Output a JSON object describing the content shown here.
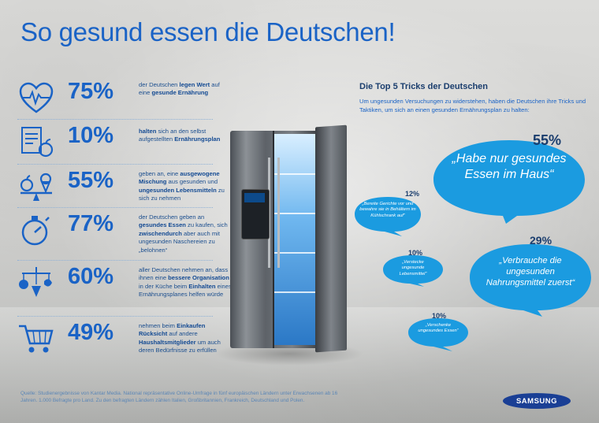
{
  "title": "So gesund essen die Deutschen!",
  "stats": [
    {
      "pct": "75%",
      "icon": "heart-pulse-icon",
      "t1": "der Deutschen ",
      "b1": "legen Wert",
      "t2": " auf eine ",
      "b2": "gesunde Ernährung",
      "t3": ""
    },
    {
      "pct": "10%",
      "icon": "checklist-apple-icon",
      "t1": "",
      "b1": "halten",
      "t2": " sich an den selbst aufgestellten ",
      "b2": "Ernährungsplan",
      "t3": ""
    },
    {
      "pct": "55%",
      "icon": "balance-apple-icecream-icon",
      "t1": "geben an, eine ",
      "b1": "ausgewogene Mischung",
      "t2": " aus gesunden und ",
      "b2": "ungesunden Lebensmitteln",
      "t3": " zu sich zu nehmen"
    },
    {
      "pct": "77%",
      "icon": "stopwatch-icon",
      "t1": "der Deutschen geben an ",
      "b1": "gesundes Essen",
      "t2": " zu kaufen, sich ",
      "b2": "zwischendurch",
      "t3": " aber auch mit ungesunden Naschereien zu „belohnen“"
    },
    {
      "pct": "60%",
      "icon": "food-mobile-icon",
      "t1": "aller Deutschen nehmen an, dass ihnen eine ",
      "b1": "bessere Organisation",
      "t2": " in der Küche beim ",
      "b2": "Einhalten",
      "t3": " eines Ernährungsplanes helfen würde"
    },
    {
      "pct": "49%",
      "icon": "shopping-cart-icon",
      "t1": "nehmen beim ",
      "b1": "Einkaufen Rücksicht",
      "t2": " auf andere ",
      "b2": "Haushaltsmitglieder",
      "t3": " um auch deren Bedürfnisse zu erfüllen"
    }
  ],
  "tricks_title": "Die Top 5 Tricks der Deutschen",
  "tricks_intro": "Um ungesunden Versuchungen zu widerstehen, haben die Deutschen ihre Tricks und Taktiken, um sich an einen gesunden Ernährungsplan zu halten:",
  "bubbles": [
    {
      "pct": "55%",
      "text": "„Habe nur gesundes Essen im Haus“"
    },
    {
      "pct": "12%",
      "text": "„Bereite Gerichte vor und bewahre sie in Behältern im Kühlschrank auf“"
    },
    {
      "pct": "10%",
      "text": "„Verstecke ungesunde Lebensmittel“"
    },
    {
      "pct": "29%",
      "text": "„Verbrauche die ungesunden Nahrungsmittel zuerst“"
    },
    {
      "pct": "10%",
      "text": "„Verschenke ungesundes Essen“"
    }
  ],
  "source": "Quelle: Studienergebnisse von Kantar Media. National repräsentative Online-Umfrage in fünf europäischen Ländern unter Erwachsenen ab 16 Jahren. 1.000 Befragte pro Land. Zu den befragten Ländern zählen Italien, Großbritannien, Frankreich, Deutschland und Polen.",
  "logo": "SAMSUNG",
  "colors": {
    "accent": "#1a63c6",
    "bubble": "#1b9be0",
    "dark": "#1b3e6e"
  }
}
